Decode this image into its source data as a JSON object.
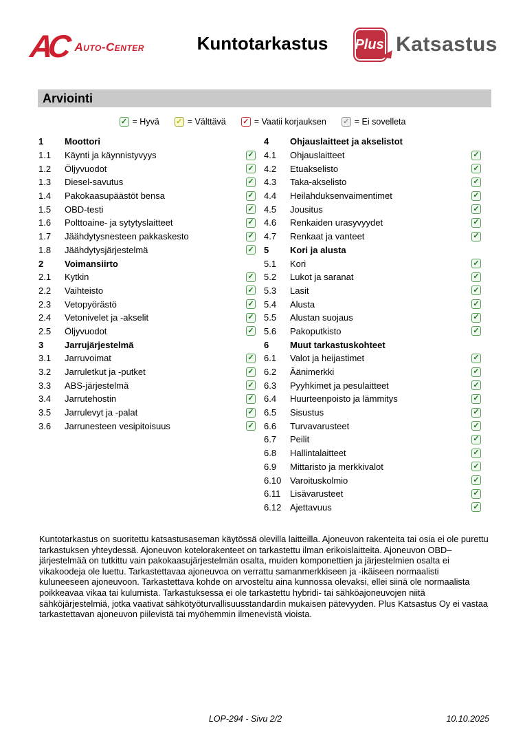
{
  "header": {
    "left_logo": {
      "mark": "AC",
      "text": "Auto-Center"
    },
    "title": "Kuntotarkastus",
    "right_logo": {
      "badge": "Plus",
      "text": "Katsastus"
    }
  },
  "section_title": "Arviointi",
  "legend": [
    {
      "status": "good",
      "label": "= Hyvä"
    },
    {
      "status": "fair",
      "label": "= Välttävä"
    },
    {
      "status": "repair",
      "label": "= Vaatii korjauksen"
    },
    {
      "status": "na",
      "label": "= Ei sovelleta"
    }
  ],
  "colors": {
    "good": "#1e7a1e",
    "fair": "#b9b922",
    "repair": "#c42828",
    "na": "#8f8f8f",
    "brand_red": "#c22f3e",
    "logo_gray": "#57585a",
    "section_bar_gray": "#c9c9c9"
  },
  "checklist": {
    "left": [
      {
        "num": "1",
        "label": "Moottori",
        "header": true
      },
      {
        "num": "1.1",
        "label": "Käynti ja käynnistyvyys",
        "status": "good"
      },
      {
        "num": "1.2",
        "label": "Öljyvuodot",
        "status": "good"
      },
      {
        "num": "1.3",
        "label": "Diesel-savutus",
        "status": "good"
      },
      {
        "num": "1.4",
        "label": "Pakokaasupäästöt bensa",
        "status": "good"
      },
      {
        "num": "1.5",
        "label": "OBD-testi",
        "status": "good"
      },
      {
        "num": "1.6",
        "label": "Polttoaine- ja sytytyslaitteet",
        "status": "good"
      },
      {
        "num": "1.7",
        "label": "Jäähdytysnesteen pakkaskesto",
        "status": "good"
      },
      {
        "num": "1.8",
        "label": "Jäähdytysjärjestelmä",
        "status": "good"
      },
      {
        "num": "2",
        "label": "Voimansiirto",
        "header": true
      },
      {
        "num": "2.1",
        "label": "Kytkin",
        "status": "good"
      },
      {
        "num": "2.2",
        "label": "Vaihteisto",
        "status": "good"
      },
      {
        "num": "2.3",
        "label": "Vetopyörästö",
        "status": "good"
      },
      {
        "num": "2.4",
        "label": "Vetonivelet ja -akselit",
        "status": "good"
      },
      {
        "num": "2.5",
        "label": "Öljyvuodot",
        "status": "good"
      },
      {
        "num": "3",
        "label": "Jarrujärjestelmä",
        "header": true
      },
      {
        "num": "3.1",
        "label": "Jarruvoimat",
        "status": "good"
      },
      {
        "num": "3.2",
        "label": "Jarruletkut ja -putket",
        "status": "good"
      },
      {
        "num": "3.3",
        "label": "ABS-järjestelmä",
        "status": "good"
      },
      {
        "num": "3.4",
        "label": "Jarrutehostin",
        "status": "good"
      },
      {
        "num": "3.5",
        "label": "Jarrulevyt ja -palat",
        "status": "good"
      },
      {
        "num": "3.6",
        "label": "Jarrunesteen vesipitoisuus",
        "status": "good"
      }
    ],
    "right": [
      {
        "num": "4",
        "label": "Ohjauslaitteet ja akselistot",
        "header": true
      },
      {
        "num": "4.1",
        "label": "Ohjauslaitteet",
        "status": "good"
      },
      {
        "num": "4.2",
        "label": "Etuakselisto",
        "status": "good"
      },
      {
        "num": "4.3",
        "label": "Taka-akselisto",
        "status": "good"
      },
      {
        "num": "4.4",
        "label": "Heilahduksenvaimentimet",
        "status": "good"
      },
      {
        "num": "4.5",
        "label": "Jousitus",
        "status": "good"
      },
      {
        "num": "4.6",
        "label": "Renkaiden urasyvyydet",
        "status": "good"
      },
      {
        "num": "4.7",
        "label": "Renkaat ja vanteet",
        "status": "good"
      },
      {
        "num": "5",
        "label": "Kori ja alusta",
        "header": true
      },
      {
        "num": "5.1",
        "label": "Kori",
        "status": "good"
      },
      {
        "num": "5.2",
        "label": "Lukot ja saranat",
        "status": "good"
      },
      {
        "num": "5.3",
        "label": "Lasit",
        "status": "good"
      },
      {
        "num": "5.4",
        "label": "Alusta",
        "status": "good"
      },
      {
        "num": "5.5",
        "label": "Alustan suojaus",
        "status": "good"
      },
      {
        "num": "5.6",
        "label": "Pakoputkisto",
        "status": "good"
      },
      {
        "num": "6",
        "label": "Muut tarkastuskohteet",
        "header": true
      },
      {
        "num": "6.1",
        "label": "Valot ja heijastimet",
        "status": "good"
      },
      {
        "num": "6.2",
        "label": "Äänimerkki",
        "status": "good"
      },
      {
        "num": "6.3",
        "label": "Pyyhkimet ja pesulaitteet",
        "status": "good"
      },
      {
        "num": "6.4",
        "label": "Huurteenpoisto ja lämmitys",
        "status": "good"
      },
      {
        "num": "6.5",
        "label": "Sisustus",
        "status": "good"
      },
      {
        "num": "6.6",
        "label": "Turvavarusteet",
        "status": "good"
      },
      {
        "num": "6.7",
        "label": "Peilit",
        "status": "good"
      },
      {
        "num": "6.8",
        "label": "Hallintalaitteet",
        "status": "good"
      },
      {
        "num": "6.9",
        "label": "Mittaristo ja merkkivalot",
        "status": "good"
      },
      {
        "num": "6.10",
        "label": "Varoituskolmio",
        "status": "good"
      },
      {
        "num": "6.11",
        "label": "Lisävarusteet",
        "status": "good"
      },
      {
        "num": "6.12",
        "label": "Ajettavuus",
        "status": "good"
      }
    ]
  },
  "disclaimer": "Kuntotarkastus on suoritettu katsastusaseman käytössä olevilla laitteilla. Ajoneuvon rakenteita tai osia ei ole purettu tarkastuksen yhteydessä. Ajoneuvon kotelorakenteet on tarkastettu ilman erikoislaitteita. Ajoneuvon OBD–järjestelmää on tutkittu vain pakokaasujärjestelmän osalta, muiden komponettien ja järjestelmien osalta ei vikakoodeja ole luettu. Tarkastettavaa ajoneuvoa on verrattu samanmerkkiseen ja -ikäiseen normaalisti kuluneeseen ajoneuvoon. Tarkastettava kohde on arvosteltu aina kunnossa olevaksi, ellei siinä ole normaalista poikkeavaa vikaa tai kulumista. Tarkastuksessa ei ole tarkastettu hybridi- tai sähköajoneuvojen niitä sähköjärjestelmiä, jotka vaativat sähkötyöturvallisuusstandardin mukaisen pätevyyden. Plus Katsastus Oy ei vastaa tarkastettavan ajoneuvon piilevistä tai myöhemmin ilmenevistä vioista.",
  "footer": {
    "doc_id": "LOP-294 - Sivu 2/2",
    "date": "10.10.2025"
  }
}
